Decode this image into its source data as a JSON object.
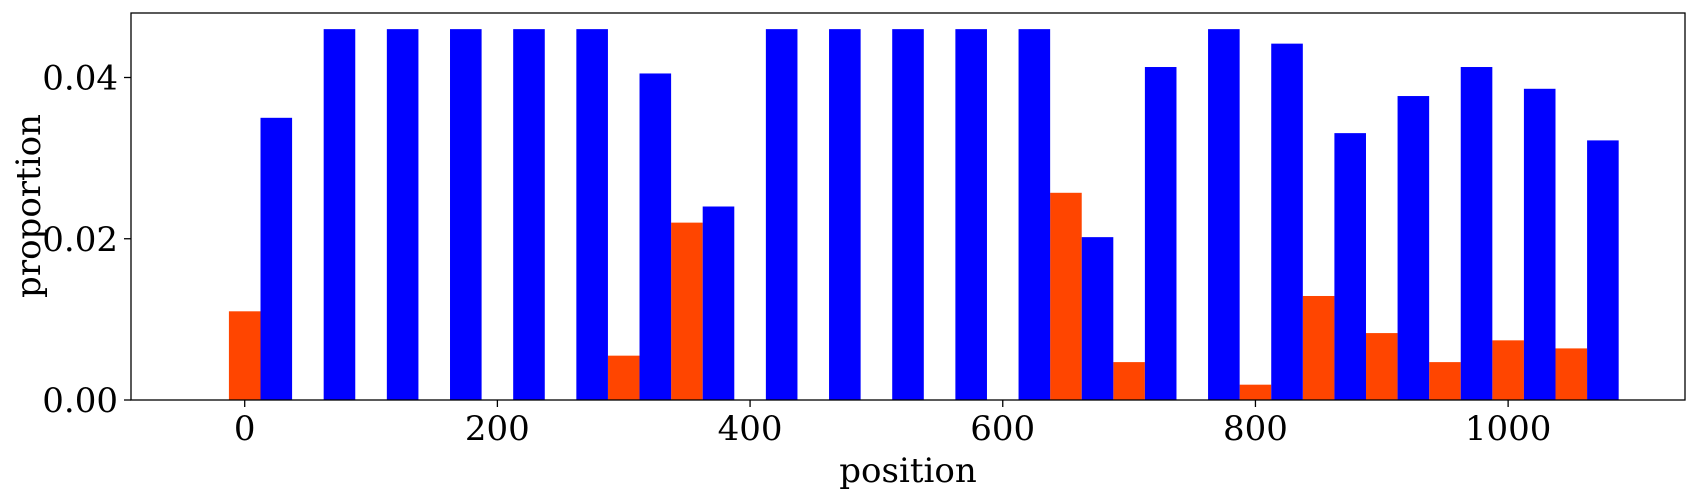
{
  "chart_data": {
    "type": "bar",
    "xlabel": "position",
    "ylabel": "proportion",
    "xlim": [
      -90,
      1140
    ],
    "ylim": [
      0,
      0.048
    ],
    "xticks": [
      0,
      200,
      400,
      600,
      800,
      1000
    ],
    "xtick_labels": [
      "0",
      "200",
      "400",
      "600",
      "800",
      "1000"
    ],
    "yticks": [
      0,
      0.02,
      0.04
    ],
    "ytick_labels": [
      "0.00",
      "0.02",
      "0.04"
    ],
    "bar_width": 25,
    "grid": false,
    "legend": "none",
    "series": [
      {
        "color": "#ff4500",
        "x": [
          0,
          300,
          350,
          650,
          700,
          800,
          850,
          900,
          950,
          1000,
          1050
        ],
        "values": [
          0.011,
          0.0055,
          0.022,
          0.0257,
          0.0047,
          0.0019,
          0.0129,
          0.0083,
          0.0047,
          0.0074,
          0.0064
        ]
      },
      {
        "color": "#0000ff",
        "x": [
          25,
          75,
          125,
          175,
          225,
          275,
          325,
          375,
          425,
          475,
          525,
          575,
          625,
          675,
          725,
          775,
          825,
          875,
          925,
          975,
          1025,
          1075
        ],
        "values": [
          0.035,
          0.046,
          0.046,
          0.046,
          0.046,
          0.046,
          0.0405,
          0.024,
          0.046,
          0.046,
          0.046,
          0.046,
          0.046,
          0.0202,
          0.0413,
          0.046,
          0.0442,
          0.0331,
          0.0377,
          0.0413,
          0.0386,
          0.0322
        ]
      }
    ]
  }
}
